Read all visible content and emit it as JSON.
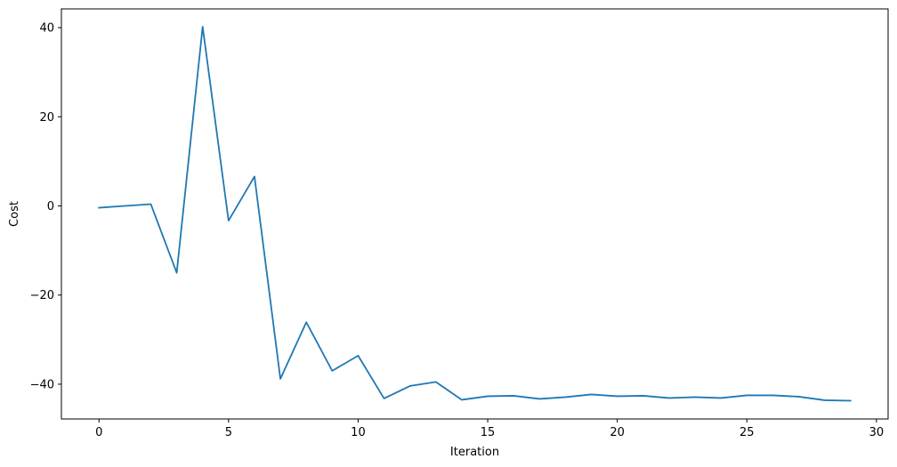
{
  "chart_data": {
    "type": "line",
    "title": "",
    "xlabel": "Iteration",
    "ylabel": "Cost",
    "xlim": [
      -1.45,
      30.45
    ],
    "ylim": [
      -47.8,
      44.2
    ],
    "xticks": [
      0,
      5,
      10,
      15,
      20,
      25,
      30
    ],
    "yticks": [
      -40,
      -20,
      0,
      20,
      40
    ],
    "xtick_labels": [
      "0",
      "5",
      "10",
      "15",
      "20",
      "25",
      "30"
    ],
    "ytick_labels": [
      "−40",
      "−20",
      "0",
      "20",
      "40"
    ],
    "grid": false,
    "legend": false,
    "series": [
      {
        "color": "#1f77b4",
        "x": [
          0,
          1,
          2,
          3,
          4,
          5,
          6,
          7,
          8,
          9,
          10,
          11,
          12,
          13,
          14,
          15,
          16,
          17,
          18,
          19,
          20,
          21,
          22,
          23,
          24,
          25,
          26,
          27,
          28,
          29
        ],
        "y": [
          -0.4,
          0.0,
          0.4,
          -15.0,
          40.2,
          -3.3,
          6.6,
          -38.8,
          -26.1,
          -37.0,
          -33.6,
          -43.2,
          -40.4,
          -39.5,
          -43.5,
          -42.7,
          -42.6,
          -43.3,
          -42.9,
          -42.3,
          -42.7,
          -42.6,
          -43.1,
          -42.9,
          -43.1,
          -42.5,
          -42.5,
          -42.8,
          -43.6,
          -43.7
        ]
      }
    ]
  }
}
